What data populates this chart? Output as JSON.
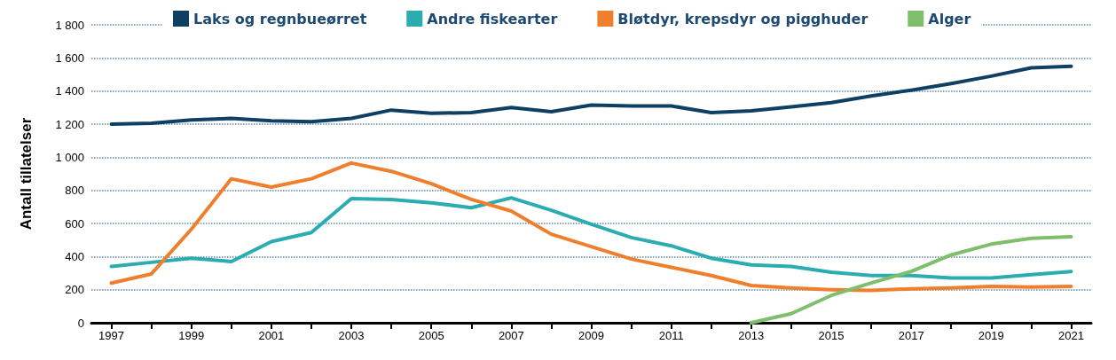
{
  "chart_data": {
    "type": "line",
    "ylabel": "Antall tillatelser",
    "categories": [
      "1997",
      null,
      "1999",
      null,
      "2001",
      null,
      "2003",
      null,
      "2005",
      null,
      "2007",
      null,
      "2009",
      null,
      "2011",
      null,
      "2013",
      null,
      "2015",
      null,
      "2017",
      null,
      "2019",
      null,
      "2021"
    ],
    "series": [
      {
        "name": "Laks og regnbueørret",
        "color": "#0f3f63",
        "values": [
          1200,
          1205,
          1225,
          1235,
          1220,
          1215,
          1235,
          1285,
          1265,
          1270,
          1300,
          1275,
          1315,
          1310,
          1310,
          1270,
          1280,
          1305,
          1330,
          1370,
          1405,
          1445,
          1490,
          1540,
          1550
        ]
      },
      {
        "name": "Andre fiskearter",
        "color": "#2aacb0",
        "values": [
          340,
          365,
          390,
          370,
          490,
          545,
          750,
          745,
          725,
          695,
          755,
          680,
          595,
          515,
          465,
          390,
          350,
          340,
          305,
          285,
          285,
          270,
          270,
          290,
          310
        ]
      },
      {
        "name": "Bløtdyr, krepsdyr og pigghuder",
        "color": "#f07f2d",
        "values": [
          240,
          295,
          565,
          870,
          820,
          870,
          965,
          915,
          840,
          745,
          675,
          535,
          460,
          385,
          335,
          285,
          225,
          210,
          200,
          195,
          205,
          210,
          220,
          215,
          220
        ]
      },
      {
        "name": "Alger",
        "color": "#7fbe6a",
        "values": [
          null,
          null,
          null,
          null,
          null,
          null,
          null,
          null,
          null,
          null,
          null,
          null,
          null,
          null,
          null,
          null,
          0,
          55,
          165,
          240,
          310,
          410,
          475,
          510,
          520
        ]
      }
    ],
    "ylim": [
      0,
      1800
    ],
    "yticks": [
      0,
      200,
      400,
      600,
      800,
      {
        "value": 1000,
        "label": "1 000"
      },
      {
        "value": 1200,
        "label": "1 200"
      },
      {
        "value": 1400,
        "label": "1 400"
      },
      {
        "value": 1600,
        "label": "1 600"
      },
      {
        "value": 1800,
        "label": "1 800"
      }
    ],
    "grid": "y",
    "legend": "top",
    "marker": "none",
    "line_style": "solid"
  }
}
